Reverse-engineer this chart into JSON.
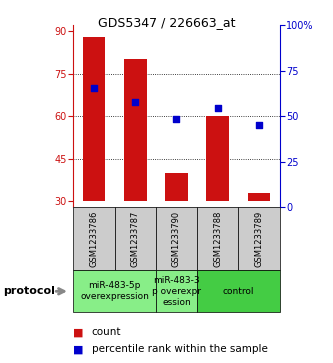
{
  "title": "GDS5347 / 226663_at",
  "samples": [
    "GSM1233786",
    "GSM1233787",
    "GSM1233790",
    "GSM1233788",
    "GSM1233789"
  ],
  "bar_values": [
    88,
    80,
    40,
    60,
    33
  ],
  "bar_bottom": 30,
  "dot_values_left": [
    70,
    65,
    59,
    63,
    57
  ],
  "ylim_left": [
    28,
    92
  ],
  "ylim_right": [
    0,
    100
  ],
  "yticks_left": [
    30,
    45,
    60,
    75,
    90
  ],
  "yticks_right": [
    0,
    25,
    50,
    75,
    100
  ],
  "yticklabels_right": [
    "0",
    "25",
    "50",
    "75",
    "100%"
  ],
  "bar_color": "#cc1111",
  "dot_color": "#0000cc",
  "grid_yticks": [
    45,
    60,
    75
  ],
  "group_configs": [
    {
      "samples": [
        0,
        1
      ],
      "label": "miR-483-5p\noverexpression",
      "color": "#88ee88"
    },
    {
      "samples": [
        2
      ],
      "label": "miR-483-3\np overexpr\nession",
      "color": "#88ee88"
    },
    {
      "samples": [
        3,
        4
      ],
      "label": "control",
      "color": "#44cc44"
    }
  ],
  "protocol_label": "protocol",
  "legend_count_label": "count",
  "legend_pct_label": "percentile rank within the sample",
  "left_axis_color": "#cc1111",
  "right_axis_color": "#0000cc",
  "sample_box_color": "#cccccc",
  "title_fontsize": 9,
  "tick_fontsize": 7,
  "sample_fontsize": 6,
  "group_fontsize": 6.5,
  "legend_fontsize": 7.5,
  "protocol_fontsize": 8
}
